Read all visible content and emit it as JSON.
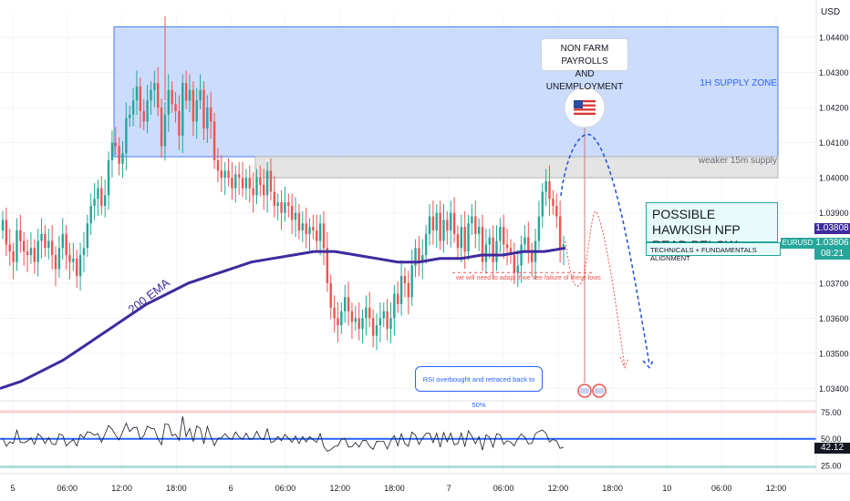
{
  "currency_label": "USD",
  "price_axis_ticks": [
    "1.04400",
    "1.04300",
    "1.04200",
    "1.04100",
    "1.04000",
    "1.03900",
    "1.03700",
    "1.03600",
    "1.03500",
    "1.03400"
  ],
  "rsi_axis_ticks": [
    "75.00",
    "50.00",
    "25.00"
  ],
  "time_axis_ticks": [
    "5",
    "06:00",
    "12:00",
    "18:00",
    "6",
    "06:00",
    "12:00",
    "18:00",
    "7",
    "06:00",
    "12:00",
    "18:00",
    "10",
    "06:00",
    "12:00"
  ],
  "price_tags": {
    "price_a": "1.03808",
    "symbol": "EURUSD",
    "price_b": "1.03806",
    "countdown": "08:21",
    "rsi_value": "42.12"
  },
  "annotations": {
    "supply_zone": "1H SUPPLY ZONE",
    "weaker_supply": "weaker 15m supply",
    "nfp_line1": "NON FARM PAYROLLS",
    "nfp_line2": "AND UNEMPLOYMENT",
    "hawkish_line1": "POSSIBLE HAWKISH NFP",
    "hawkish_line2": "READ BELOW",
    "alignment": "TECHNICALS + FUNDAMENTALS ALIGNMENT",
    "ema_label": "200 EMA",
    "adapt_note": "we will need to adapt if we see failure of these lows",
    "rsi_note": "RSI overbought and retraced back to 50%"
  },
  "colors": {
    "up": "#26a69a",
    "down": "#ef5350",
    "ema": "#3f2a9e",
    "supply_zone": "#bbd0fb",
    "projection": "#1e4fd8",
    "projection_alt": "#ef5350",
    "rsi_line": "#131722",
    "rsi_mid": "#2962ff"
  },
  "chart_data": {
    "type": "candlestick",
    "instrument": "EURUSD",
    "price_range": [
      1.0337,
      1.0447
    ],
    "candles_close": [
      1.0388,
      1.0381,
      1.0379,
      1.0376,
      1.0385,
      1.0382,
      1.0379,
      1.0378,
      1.038,
      1.0376,
      1.0382,
      1.0384,
      1.038,
      1.0382,
      1.0378,
      1.0374,
      1.038,
      1.0384,
      1.0378,
      1.0376,
      1.0377,
      1.0372,
      1.0378,
      1.038,
      1.0387,
      1.0392,
      1.0394,
      1.0397,
      1.0392,
      1.0395,
      1.0405,
      1.041,
      1.0409,
      1.0404,
      1.0407,
      1.0417,
      1.0418,
      1.0422,
      1.0426,
      1.0419,
      1.0416,
      1.0422,
      1.0425,
      1.0427,
      1.042,
      1.0409,
      1.0418,
      1.0425,
      1.0421,
      1.0419,
      1.0412,
      1.0427,
      1.0422,
      1.0425,
      1.0416,
      1.0422,
      1.0425,
      1.0414,
      1.042,
      1.0416,
      1.0405,
      1.0402,
      1.04,
      1.0402,
      1.04,
      1.0397,
      1.0401,
      1.04,
      1.0397,
      1.04,
      1.0397,
      1.0395,
      1.04,
      1.0398,
      1.0395,
      1.0402,
      1.0396,
      1.0392,
      1.0393,
      1.039,
      1.0393,
      1.0392,
      1.0388,
      1.039,
      1.0385,
      1.0387,
      1.0384,
      1.0386,
      1.0385,
      1.0382,
      1.0387,
      1.038,
      1.037,
      1.0363,
      1.036,
      1.0358,
      1.0362,
      1.0366,
      1.0362,
      1.0359,
      1.036,
      1.0357,
      1.036,
      1.0363,
      1.036,
      1.0355,
      1.0358,
      1.036,
      1.0362,
      1.0357,
      1.036,
      1.0367,
      1.0364,
      1.0372,
      1.037,
      1.0366,
      1.0375,
      1.038,
      1.0376,
      1.0378,
      1.0384,
      1.0389,
      1.0385,
      1.039,
      1.0382,
      1.0388,
      1.0385,
      1.039,
      1.0384,
      1.038,
      1.0386,
      1.0379,
      1.0387,
      1.0389,
      1.0384,
      1.0386,
      1.0376,
      1.0381,
      1.0383,
      1.0376,
      1.0382,
      1.0386,
      1.0381,
      1.038,
      1.0378,
      1.0373,
      1.0375,
      1.0381,
      1.0383,
      1.0379,
      1.0376,
      1.0382,
      1.0389,
      1.0396,
      1.0399,
      1.0394,
      1.0392,
      1.0389,
      1.038,
      1.0381
    ],
    "ema200": [
      1.034,
      1.0342,
      1.0345,
      1.0348,
      1.0352,
      1.0356,
      1.036,
      1.0364,
      1.0367,
      1.037,
      1.0372,
      1.0374,
      1.0376,
      1.0377,
      1.0378,
      1.0379,
      1.0379,
      1.0378,
      1.0377,
      1.0376,
      1.0376,
      1.0377,
      1.0377,
      1.0378,
      1.0378,
      1.0379,
      1.0379,
      1.038
    ],
    "supply_zone": [
      1.0406,
      1.0443
    ],
    "weaker_supply_zone": [
      1.04,
      1.0406
    ],
    "adapt_level": 1.0373,
    "projection_low": 1.0347,
    "rsi": {
      "range": [
        18,
        85
      ],
      "overbought": 75,
      "mid": 50,
      "oversold": 25,
      "current": 42.12
    }
  }
}
